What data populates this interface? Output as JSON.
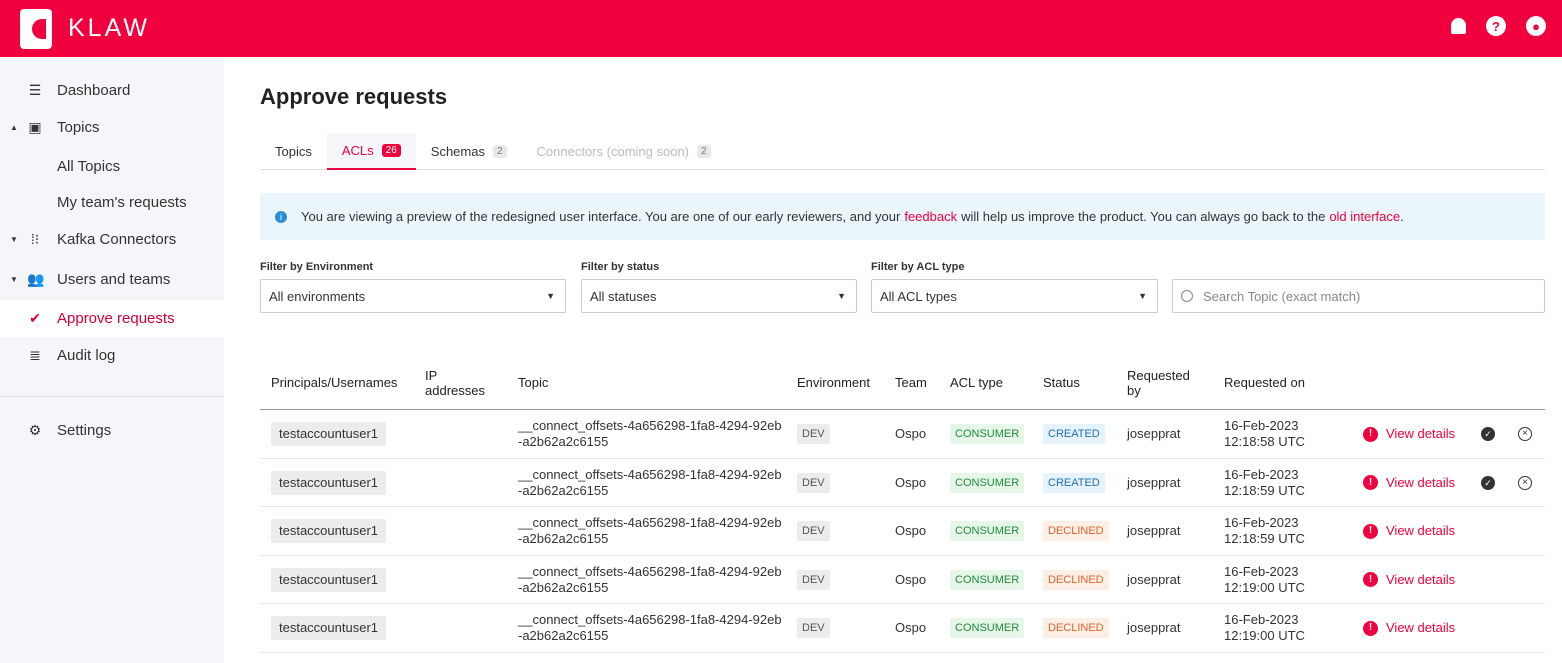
{
  "app": {
    "name": "KLAW",
    "accent": "#f0003c"
  },
  "topbar": {
    "icons": [
      "bell-icon",
      "help-icon",
      "user-icon"
    ]
  },
  "sidebar": {
    "items": [
      {
        "label": "Dashboard",
        "icon": "database-icon"
      },
      {
        "label": "Topics",
        "icon": "topics-icon",
        "expanded": true
      },
      {
        "label": "All Topics"
      },
      {
        "label": "My team's requests"
      },
      {
        "label": "Kafka Connectors",
        "icon": "connector-icon",
        "expanded": false
      },
      {
        "label": "Users and teams",
        "icon": "users-icon",
        "expanded": false
      },
      {
        "label": "Approve requests",
        "icon": "check-circle-icon",
        "active": true
      },
      {
        "label": "Audit log",
        "icon": "list-icon"
      },
      {
        "label": "Settings",
        "icon": "gear-icon"
      }
    ]
  },
  "page": {
    "title": "Approve requests"
  },
  "tabs": [
    {
      "label": "Topics"
    },
    {
      "label": "ACLs",
      "count": "26",
      "active": true
    },
    {
      "label": "Schemas",
      "count": "2"
    },
    {
      "label": "Connectors (coming soon)",
      "count": "2",
      "disabled": true
    }
  ],
  "banner": {
    "text1": "You are viewing a preview of the redesigned user interface. You are one of our early reviewers, and your",
    "link1": "feedback",
    "text2": "will help us improve the product. You can always go back to the",
    "link2": "old interface",
    "text3": "."
  },
  "filters": {
    "environment": {
      "label": "Filter by Environment",
      "value": "All environments"
    },
    "status": {
      "label": "Filter by status",
      "value": "All statuses"
    },
    "acl_type": {
      "label": "Filter by ACL type",
      "value": "All ACL types"
    },
    "search": {
      "placeholder": "Search Topic (exact match)"
    }
  },
  "table": {
    "headers": [
      "Principals/Usernames",
      "IP addresses",
      "Topic",
      "Environment",
      "Team",
      "ACL type",
      "Status",
      "Requested by",
      "Requested on"
    ],
    "action_label": "View details",
    "rows": [
      {
        "principal": "testaccountuser1",
        "ip": "",
        "topic": "__connect_offsets-4a656298-1fa8-4294-92eb-a2b62a2c6155",
        "env": "DEV",
        "team": "Ospo",
        "acl_type": "CONSUMER",
        "status": "CREATED",
        "requested_by": "josepprat",
        "date": "16-Feb-2023",
        "time": "12:18:58 UTC",
        "actions": true
      },
      {
        "principal": "testaccountuser1",
        "ip": "",
        "topic": "__connect_offsets-4a656298-1fa8-4294-92eb-a2b62a2c6155",
        "env": "DEV",
        "team": "Ospo",
        "acl_type": "CONSUMER",
        "status": "CREATED",
        "requested_by": "josepprat",
        "date": "16-Feb-2023",
        "time": "12:18:59 UTC",
        "actions": true
      },
      {
        "principal": "testaccountuser1",
        "ip": "",
        "topic": "__connect_offsets-4a656298-1fa8-4294-92eb-a2b62a2c6155",
        "env": "DEV",
        "team": "Ospo",
        "acl_type": "CONSUMER",
        "status": "DECLINED",
        "requested_by": "josepprat",
        "date": "16-Feb-2023",
        "time": "12:18:59 UTC",
        "actions": false
      },
      {
        "principal": "testaccountuser1",
        "ip": "",
        "topic": "__connect_offsets-4a656298-1fa8-4294-92eb-a2b62a2c6155",
        "env": "DEV",
        "team": "Ospo",
        "acl_type": "CONSUMER",
        "status": "DECLINED",
        "requested_by": "josepprat",
        "date": "16-Feb-2023",
        "time": "12:19:00 UTC",
        "actions": false
      },
      {
        "principal": "testaccountuser1",
        "ip": "",
        "topic": "__connect_offsets-4a656298-1fa8-4294-92eb-a2b62a2c6155",
        "env": "DEV",
        "team": "Ospo",
        "acl_type": "CONSUMER",
        "status": "DECLINED",
        "requested_by": "josepprat",
        "date": "16-Feb-2023",
        "time": "12:19:00 UTC",
        "actions": false
      }
    ]
  }
}
